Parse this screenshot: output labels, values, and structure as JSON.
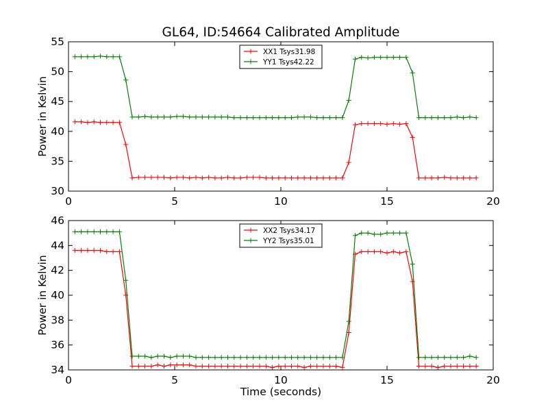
{
  "page_title": "GL64, ID:54664 Calibrated Amplitude",
  "chart_data": [
    {
      "type": "line",
      "title": "GL64, ID:54664 Calibrated Amplitude",
      "xlabel": "",
      "ylabel": "Power in Kelvin",
      "xlim": [
        0,
        20
      ],
      "ylim": [
        30,
        55
      ],
      "xticks": [
        0,
        5,
        10,
        15,
        20
      ],
      "yticks": [
        30,
        35,
        40,
        45,
        50,
        55
      ],
      "grid": false,
      "legend_position": "top-center",
      "series": [
        {
          "name": "XX1 Tsys31.98",
          "color": "#ff0000",
          "x": [
            0.3,
            0.6,
            0.9,
            1.2,
            1.5,
            1.8,
            2.1,
            2.4,
            2.7,
            3.0,
            3.3,
            3.6,
            3.9,
            4.2,
            4.5,
            4.8,
            5.1,
            5.4,
            5.7,
            6.0,
            6.3,
            6.6,
            6.9,
            7.2,
            7.5,
            7.8,
            8.1,
            8.4,
            8.7,
            9.0,
            9.3,
            9.6,
            9.9,
            10.2,
            10.5,
            10.8,
            11.1,
            11.4,
            11.7,
            12.0,
            12.3,
            12.6,
            12.9,
            13.2,
            13.5,
            13.8,
            14.1,
            14.4,
            14.7,
            15.0,
            15.3,
            15.6,
            15.9,
            16.2,
            16.5,
            16.8,
            17.1,
            17.4,
            17.7,
            18.0,
            18.3,
            18.6,
            18.9,
            19.2
          ],
          "y": [
            41.6,
            41.6,
            41.5,
            41.6,
            41.5,
            41.5,
            41.5,
            41.5,
            37.8,
            32.2,
            32.3,
            32.3,
            32.3,
            32.3,
            32.3,
            32.2,
            32.3,
            32.3,
            32.2,
            32.3,
            32.2,
            32.3,
            32.2,
            32.2,
            32.3,
            32.2,
            32.2,
            32.3,
            32.3,
            32.3,
            32.2,
            32.2,
            32.2,
            32.2,
            32.2,
            32.2,
            32.2,
            32.2,
            32.2,
            32.2,
            32.2,
            32.2,
            32.2,
            34.8,
            41.1,
            41.3,
            41.3,
            41.3,
            41.3,
            41.2,
            41.3,
            41.2,
            41.3,
            39.0,
            32.2,
            32.2,
            32.2,
            32.2,
            32.3,
            32.2,
            32.2,
            32.2,
            32.2,
            32.2
          ]
        },
        {
          "name": "YY1 Tsys42.22",
          "color": "#008000",
          "x": [
            0.3,
            0.6,
            0.9,
            1.2,
            1.5,
            1.8,
            2.1,
            2.4,
            2.7,
            3.0,
            3.3,
            3.6,
            3.9,
            4.2,
            4.5,
            4.8,
            5.1,
            5.4,
            5.7,
            6.0,
            6.3,
            6.6,
            6.9,
            7.2,
            7.5,
            7.8,
            8.1,
            8.4,
            8.7,
            9.0,
            9.3,
            9.6,
            9.9,
            10.2,
            10.5,
            10.8,
            11.1,
            11.4,
            11.7,
            12.0,
            12.3,
            12.6,
            12.9,
            13.2,
            13.5,
            13.8,
            14.1,
            14.4,
            14.7,
            15.0,
            15.3,
            15.6,
            15.9,
            16.2,
            16.5,
            16.8,
            17.1,
            17.4,
            17.7,
            18.0,
            18.3,
            18.6,
            18.9,
            19.2
          ],
          "y": [
            52.5,
            52.5,
            52.5,
            52.5,
            52.6,
            52.5,
            52.5,
            52.5,
            48.6,
            42.4,
            42.4,
            42.5,
            42.4,
            42.4,
            42.4,
            42.4,
            42.5,
            42.5,
            42.4,
            42.4,
            42.4,
            42.4,
            42.4,
            42.4,
            42.4,
            42.3,
            42.3,
            42.3,
            42.3,
            42.3,
            42.3,
            42.3,
            42.3,
            42.3,
            42.3,
            42.4,
            42.4,
            42.4,
            42.3,
            42.3,
            42.3,
            42.3,
            42.3,
            45.2,
            52.1,
            52.4,
            52.3,
            52.4,
            52.4,
            52.4,
            52.4,
            52.4,
            52.4,
            49.8,
            42.3,
            42.3,
            42.3,
            42.3,
            42.3,
            42.3,
            42.4,
            42.3,
            42.4,
            42.3
          ]
        }
      ]
    },
    {
      "type": "line",
      "title": "",
      "xlabel": "Time (seconds)",
      "ylabel": "Power in Kelvin",
      "xlim": [
        0,
        20
      ],
      "ylim": [
        34,
        46
      ],
      "xticks": [
        0,
        5,
        10,
        15,
        20
      ],
      "yticks": [
        34,
        36,
        38,
        40,
        42,
        44,
        46
      ],
      "grid": false,
      "legend_position": "top-center",
      "series": [
        {
          "name": "XX2 Tsys34.17",
          "color": "#ff0000",
          "x": [
            0.3,
            0.6,
            0.9,
            1.2,
            1.5,
            1.8,
            2.1,
            2.4,
            2.7,
            3.0,
            3.3,
            3.6,
            3.9,
            4.2,
            4.5,
            4.8,
            5.1,
            5.4,
            5.7,
            6.0,
            6.3,
            6.6,
            6.9,
            7.2,
            7.5,
            7.8,
            8.1,
            8.4,
            8.7,
            9.0,
            9.3,
            9.6,
            9.9,
            10.2,
            10.5,
            10.8,
            11.1,
            11.4,
            11.7,
            12.0,
            12.3,
            12.6,
            12.9,
            13.2,
            13.5,
            13.8,
            14.1,
            14.4,
            14.7,
            15.0,
            15.3,
            15.6,
            15.9,
            16.2,
            16.5,
            16.8,
            17.1,
            17.4,
            17.7,
            18.0,
            18.3,
            18.6,
            18.9,
            19.2
          ],
          "y": [
            43.6,
            43.6,
            43.6,
            43.6,
            43.6,
            43.5,
            43.5,
            43.5,
            40.0,
            34.3,
            34.3,
            34.3,
            34.3,
            34.4,
            34.3,
            34.4,
            34.4,
            34.4,
            34.4,
            34.3,
            34.3,
            34.3,
            34.3,
            34.3,
            34.3,
            34.3,
            34.3,
            34.3,
            34.3,
            34.3,
            34.3,
            34.2,
            34.3,
            34.3,
            34.3,
            34.3,
            34.2,
            34.3,
            34.3,
            34.3,
            34.3,
            34.3,
            34.2,
            37.0,
            43.3,
            43.5,
            43.5,
            43.5,
            43.5,
            43.4,
            43.5,
            43.4,
            43.5,
            41.1,
            34.3,
            34.3,
            34.3,
            34.2,
            34.3,
            34.3,
            34.3,
            34.3,
            34.3,
            34.3
          ]
        },
        {
          "name": "YY2 Tsys35.01",
          "color": "#008000",
          "x": [
            0.3,
            0.6,
            0.9,
            1.2,
            1.5,
            1.8,
            2.1,
            2.4,
            2.7,
            3.0,
            3.3,
            3.6,
            3.9,
            4.2,
            4.5,
            4.8,
            5.1,
            5.4,
            5.7,
            6.0,
            6.3,
            6.6,
            6.9,
            7.2,
            7.5,
            7.8,
            8.1,
            8.4,
            8.7,
            9.0,
            9.3,
            9.6,
            9.9,
            10.2,
            10.5,
            10.8,
            11.1,
            11.4,
            11.7,
            12.0,
            12.3,
            12.6,
            12.9,
            13.2,
            13.5,
            13.8,
            14.1,
            14.4,
            14.7,
            15.0,
            15.3,
            15.6,
            15.9,
            16.2,
            16.5,
            16.8,
            17.1,
            17.4,
            17.7,
            18.0,
            18.3,
            18.6,
            18.9,
            19.2
          ],
          "y": [
            45.1,
            45.1,
            45.1,
            45.1,
            45.1,
            45.1,
            45.1,
            45.1,
            41.2,
            35.1,
            35.1,
            35.1,
            35.0,
            35.1,
            35.1,
            35.0,
            35.1,
            35.1,
            35.1,
            35.0,
            35.0,
            35.0,
            35.0,
            35.0,
            35.0,
            35.0,
            35.0,
            35.0,
            35.0,
            35.0,
            35.0,
            35.0,
            35.0,
            35.0,
            35.0,
            35.0,
            35.0,
            35.0,
            35.0,
            35.0,
            35.0,
            35.0,
            35.0,
            37.9,
            44.8,
            45.0,
            45.0,
            44.9,
            44.9,
            45.0,
            45.0,
            45.0,
            45.0,
            42.5,
            35.0,
            35.0,
            35.0,
            35.0,
            35.0,
            35.0,
            35.0,
            35.0,
            35.1,
            35.0
          ]
        }
      ]
    }
  ]
}
